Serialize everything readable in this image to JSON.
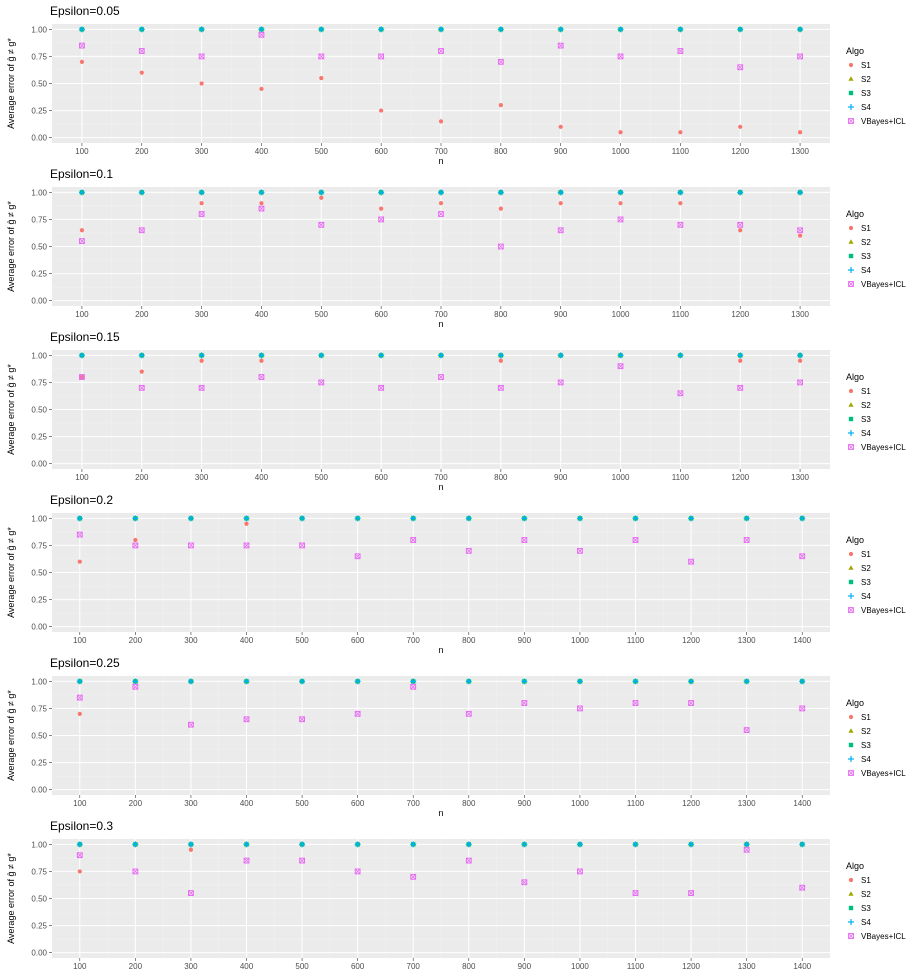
{
  "colors": {
    "panel_bg": "#ebebeb",
    "grid_major": "#ffffff",
    "grid_minor": "#f2f2f2",
    "S1": "#F8766D",
    "S2": "#A3A500",
    "S3": "#00BF7D",
    "S4": "#00B0F6",
    "VBayes+ICL": "#E76BF3"
  },
  "shared": {
    "ylabel": "Average error of ĝ ≠ g*",
    "xlabel": "n",
    "legend_title": "Algo",
    "legend_entries": [
      "S1",
      "S2",
      "S3",
      "S4",
      "VBayes+ICL"
    ],
    "legend_shapes": [
      "circle",
      "triangle",
      "square",
      "plus",
      "square-x"
    ]
  },
  "chart_data": [
    {
      "type": "scatter",
      "title": "Epsilon=0.05",
      "xlabel": "n",
      "ylabel": "Average error of ĝ ≠ g*",
      "x": [
        100,
        200,
        300,
        400,
        500,
        600,
        700,
        800,
        900,
        1000,
        1100,
        1200,
        1300
      ],
      "xlim": [
        50,
        1350
      ],
      "ylim": [
        0,
        1
      ],
      "yticks": [
        "0.00",
        "0.25",
        "0.50",
        "0.75",
        "1.00"
      ],
      "series": [
        {
          "name": "S1",
          "values": [
            0.7,
            0.6,
            0.5,
            0.45,
            0.55,
            0.25,
            0.15,
            0.3,
            0.1,
            0.05,
            0.05,
            0.1,
            0.05
          ]
        },
        {
          "name": "S2",
          "values": [
            1,
            1,
            1,
            1,
            1,
            1,
            1,
            1,
            1,
            1,
            1,
            1,
            1
          ]
        },
        {
          "name": "S3",
          "values": [
            1,
            1,
            1,
            1,
            1,
            1,
            1,
            1,
            1,
            1,
            1,
            1,
            1
          ]
        },
        {
          "name": "S4",
          "values": [
            1,
            1,
            1,
            1,
            1,
            1,
            1,
            1,
            1,
            1,
            1,
            1,
            1
          ]
        },
        {
          "name": "VBayes+ICL",
          "values": [
            0.85,
            0.8,
            0.75,
            0.95,
            0.75,
            0.75,
            0.8,
            0.7,
            0.85,
            0.75,
            0.8,
            0.65,
            0.75
          ]
        }
      ],
      "legend": "right"
    },
    {
      "type": "scatter",
      "title": "Epsilon=0.1",
      "xlabel": "n",
      "ylabel": "Average error of ĝ ≠ g*",
      "x": [
        100,
        200,
        300,
        400,
        500,
        600,
        700,
        800,
        900,
        1000,
        1100,
        1200,
        1300
      ],
      "xlim": [
        50,
        1350
      ],
      "ylim": [
        0,
        1
      ],
      "yticks": [
        "0.00",
        "0.25",
        "0.50",
        "0.75",
        "1.00"
      ],
      "series": [
        {
          "name": "S1",
          "values": [
            0.65,
            1.0,
            0.9,
            0.9,
            0.95,
            0.85,
            0.9,
            0.85,
            0.9,
            0.9,
            0.9,
            0.65,
            0.6
          ]
        },
        {
          "name": "S2",
          "values": [
            1,
            1,
            1,
            1,
            1,
            1,
            1,
            1,
            1,
            1,
            1,
            1,
            1
          ]
        },
        {
          "name": "S3",
          "values": [
            1,
            1,
            1,
            1,
            1,
            1,
            1,
            1,
            1,
            1,
            1,
            1,
            1
          ]
        },
        {
          "name": "S4",
          "values": [
            1,
            1,
            1,
            1,
            1,
            1,
            1,
            1,
            1,
            1,
            1,
            1,
            1
          ]
        },
        {
          "name": "VBayes+ICL",
          "values": [
            0.55,
            0.65,
            0.8,
            0.85,
            0.7,
            0.75,
            0.8,
            0.5,
            0.65,
            0.75,
            0.7,
            0.7,
            0.65
          ]
        }
      ],
      "legend": "right"
    },
    {
      "type": "scatter",
      "title": "Epsilon=0.15",
      "xlabel": "n",
      "ylabel": "Average error of ĝ ≠ g*",
      "x": [
        100,
        200,
        300,
        400,
        500,
        600,
        700,
        800,
        900,
        1000,
        1100,
        1200,
        1300
      ],
      "xlim": [
        50,
        1350
      ],
      "ylim": [
        0,
        1
      ],
      "yticks": [
        "0.00",
        "0.25",
        "0.50",
        "0.75",
        "1.00"
      ],
      "series": [
        {
          "name": "S1",
          "values": [
            0.8,
            0.85,
            0.95,
            0.95,
            1.0,
            1.0,
            1.0,
            0.95,
            1.0,
            1.0,
            1.0,
            0.95,
            0.95
          ]
        },
        {
          "name": "S2",
          "values": [
            1,
            1,
            1,
            1,
            1,
            1,
            1,
            1,
            1,
            1,
            1,
            1,
            1
          ]
        },
        {
          "name": "S3",
          "values": [
            1,
            1,
            1,
            1,
            1,
            1,
            1,
            1,
            1,
            1,
            1,
            1,
            1
          ]
        },
        {
          "name": "S4",
          "values": [
            1,
            1,
            1,
            1,
            1,
            1,
            1,
            1,
            1,
            1,
            1,
            1,
            1
          ]
        },
        {
          "name": "VBayes+ICL",
          "values": [
            0.8,
            0.7,
            0.7,
            0.8,
            0.75,
            0.7,
            0.8,
            0.7,
            0.75,
            0.9,
            0.65,
            0.7,
            0.75
          ]
        }
      ],
      "legend": "right"
    },
    {
      "type": "scatter",
      "title": "Epsilon=0.2",
      "xlabel": "n",
      "ylabel": "Average error of ĝ ≠ g*",
      "x": [
        100,
        200,
        300,
        400,
        500,
        600,
        700,
        800,
        900,
        1000,
        1100,
        1200,
        1300,
        1400
      ],
      "xlim": [
        50,
        1450
      ],
      "ylim": [
        0,
        1
      ],
      "yticks": [
        "0.00",
        "0.25",
        "0.50",
        "0.75",
        "1.00"
      ],
      "series": [
        {
          "name": "S1",
          "values": [
            0.6,
            0.8,
            1.0,
            0.95,
            1.0,
            1.0,
            1.0,
            1.0,
            1.0,
            1.0,
            1.0,
            1.0,
            1.0,
            1.0
          ]
        },
        {
          "name": "S2",
          "values": [
            1,
            1,
            1,
            1,
            1,
            1,
            1,
            1,
            1,
            1,
            1,
            1,
            1,
            1
          ]
        },
        {
          "name": "S3",
          "values": [
            1,
            1,
            1,
            1,
            1,
            1,
            1,
            1,
            1,
            1,
            1,
            1,
            1,
            1
          ]
        },
        {
          "name": "S4",
          "values": [
            1,
            1,
            1,
            1,
            1,
            1,
            1,
            1,
            1,
            1,
            1,
            1,
            1,
            1
          ]
        },
        {
          "name": "VBayes+ICL",
          "values": [
            0.85,
            0.75,
            0.75,
            0.75,
            0.75,
            0.65,
            0.8,
            0.7,
            0.8,
            0.7,
            0.8,
            0.6,
            0.8,
            0.65
          ]
        }
      ],
      "legend": "right"
    },
    {
      "type": "scatter",
      "title": "Epsilon=0.25",
      "xlabel": "n",
      "ylabel": "Average error of ĝ ≠ g*",
      "x": [
        100,
        200,
        300,
        400,
        500,
        600,
        700,
        800,
        900,
        1000,
        1100,
        1200,
        1300,
        1400
      ],
      "xlim": [
        50,
        1450
      ],
      "ylim": [
        0,
        1
      ],
      "yticks": [
        "0.00",
        "0.25",
        "0.50",
        "0.75",
        "1.00"
      ],
      "series": [
        {
          "name": "S1",
          "values": [
            0.7,
            1.0,
            1.0,
            1.0,
            1.0,
            1.0,
            1.0,
            1.0,
            1.0,
            1.0,
            1.0,
            1.0,
            1.0,
            1.0
          ]
        },
        {
          "name": "S2",
          "values": [
            1,
            1,
            1,
            1,
            1,
            1,
            1,
            1,
            1,
            1,
            1,
            1,
            1,
            1
          ]
        },
        {
          "name": "S3",
          "values": [
            1,
            1,
            1,
            1,
            1,
            1,
            1,
            1,
            1,
            1,
            1,
            1,
            1,
            1
          ]
        },
        {
          "name": "S4",
          "values": [
            1,
            1,
            1,
            1,
            1,
            1,
            1,
            1,
            1,
            1,
            1,
            1,
            1,
            1
          ]
        },
        {
          "name": "VBayes+ICL",
          "values": [
            0.85,
            0.95,
            0.6,
            0.65,
            0.65,
            0.7,
            0.95,
            0.7,
            0.8,
            0.75,
            0.8,
            0.8,
            0.55,
            0.75
          ]
        }
      ],
      "legend": "right"
    },
    {
      "type": "scatter",
      "title": "Epsilon=0.3",
      "xlabel": "n",
      "ylabel": "Average error of ĝ ≠ g*",
      "x": [
        100,
        200,
        300,
        400,
        500,
        600,
        700,
        800,
        900,
        1000,
        1100,
        1200,
        1300,
        1400
      ],
      "xlim": [
        50,
        1450
      ],
      "ylim": [
        0,
        1
      ],
      "yticks": [
        "0.00",
        "0.25",
        "0.50",
        "0.75",
        "1.00"
      ],
      "series": [
        {
          "name": "S1",
          "values": [
            0.75,
            1.0,
            0.95,
            1.0,
            1.0,
            1.0,
            1.0,
            1.0,
            1.0,
            1.0,
            1.0,
            1.0,
            1.0,
            1.0
          ]
        },
        {
          "name": "S2",
          "values": [
            1,
            1,
            1,
            1,
            1,
            1,
            1,
            1,
            1,
            1,
            1,
            1,
            1,
            1
          ]
        },
        {
          "name": "S3",
          "values": [
            1,
            1,
            1,
            1,
            1,
            1,
            1,
            1,
            1,
            1,
            1,
            1,
            1,
            1
          ]
        },
        {
          "name": "S4",
          "values": [
            1,
            1,
            1,
            1,
            1,
            1,
            1,
            1,
            1,
            1,
            1,
            1,
            1,
            1
          ]
        },
        {
          "name": "VBayes+ICL",
          "values": [
            0.9,
            0.75,
            0.55,
            0.85,
            0.85,
            0.75,
            0.7,
            0.85,
            0.65,
            0.75,
            0.55,
            0.55,
            0.95,
            0.6
          ]
        }
      ],
      "legend": "right"
    }
  ]
}
